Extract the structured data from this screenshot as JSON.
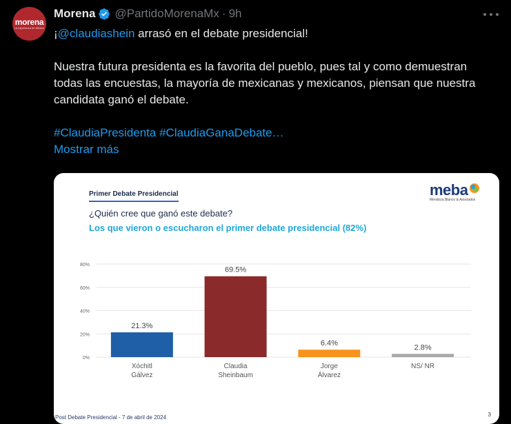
{
  "tweet": {
    "display_name": "Morena",
    "handle": "@PartidoMorenaMx",
    "separator": "·",
    "time": "9h",
    "line1_prefix": "¡",
    "mention": "@claudiashein",
    "line1_suffix": " arrasó en el debate presidencial!",
    "paragraph2": "Nuestra futura presidenta es la favorita del pueblo, pues tal y como demuestran todas las encuestas, la mayoría de mexicanas y mexicanos, piensan que nuestra candidata ganó el debate.",
    "hashtags": "#ClaudiaPresidenta #ClaudiaGanaDebate…",
    "show_more": "Mostrar más"
  },
  "avatar": {
    "word": "morena",
    "sub": "La esperanza de México",
    "color": "#b0282e"
  },
  "icons": {
    "verified": "verified-badge-icon",
    "more": "more-options-icon"
  },
  "card": {
    "title": "Primer Debate Presidencial",
    "brand": "meba",
    "brand_tag": "Mendoza Blanco & Asociados",
    "question": "¿Quién cree que ganó este debate?",
    "subtitle": "Los que vieron o escucharon el primer debate presidencial (82%)",
    "footer": "Post Debate Presidencial - 7 de abril de 2024",
    "page": "3"
  },
  "chart_data": {
    "type": "bar",
    "categories": [
      "Xóchitl\nGálvez",
      "Claudia\nSheinbaum",
      "Jorge\nÁlvarez",
      "NS/ NR"
    ],
    "values": [
      21.3,
      69.5,
      6.4,
      2.8
    ],
    "value_labels": [
      "21.3%",
      "69.5%",
      "6.4%",
      "2.8%"
    ],
    "colors": [
      "#1f5fa8",
      "#8b2a2b",
      "#f7941d",
      "#a9a9a9"
    ],
    "yticks": [
      "0%",
      "20%",
      "40%",
      "60%",
      "80%"
    ],
    "ylim": [
      0,
      80
    ],
    "grid": true
  }
}
